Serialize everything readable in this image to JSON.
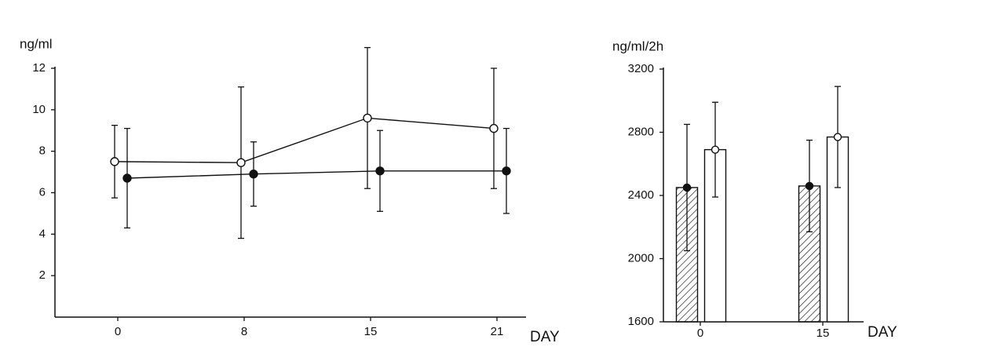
{
  "chart_data": [
    {
      "type": "line",
      "y_label": "ng/ml",
      "x_label": "DAY",
      "categories": [
        "0",
        "8",
        "15",
        "21"
      ],
      "ylim": [
        0,
        12
      ],
      "yticks": [
        2,
        4,
        6,
        8,
        10,
        12
      ],
      "series": [
        {
          "color": "#111",
          "marker_fill": "#fff",
          "values": [
            7.5,
            7.45,
            9.6,
            9.1
          ],
          "errors": [
            1.75,
            3.65,
            3.4,
            2.9
          ]
        },
        {
          "color": "#111",
          "marker_fill": "#111",
          "values": [
            6.7,
            6.9,
            7.05,
            7.05
          ],
          "errors": [
            2.4,
            1.55,
            1.95,
            2.05
          ]
        }
      ]
    },
    {
      "type": "bar",
      "y_label": "ng/ml/2h",
      "x_label": "DAY",
      "categories": [
        "0",
        "15"
      ],
      "ylim": [
        1600,
        3200
      ],
      "yticks": [
        1600,
        2000,
        2400,
        2800,
        3200
      ],
      "series": [
        {
          "color": "#111",
          "marker_fill": "#111",
          "hatch": true,
          "values": [
            2450,
            2460
          ],
          "errors": [
            400,
            290
          ]
        },
        {
          "color": "#111",
          "marker_fill": "#fff",
          "hatch": false,
          "values": [
            2690,
            2770
          ],
          "errors": [
            300,
            320
          ]
        }
      ]
    }
  ]
}
